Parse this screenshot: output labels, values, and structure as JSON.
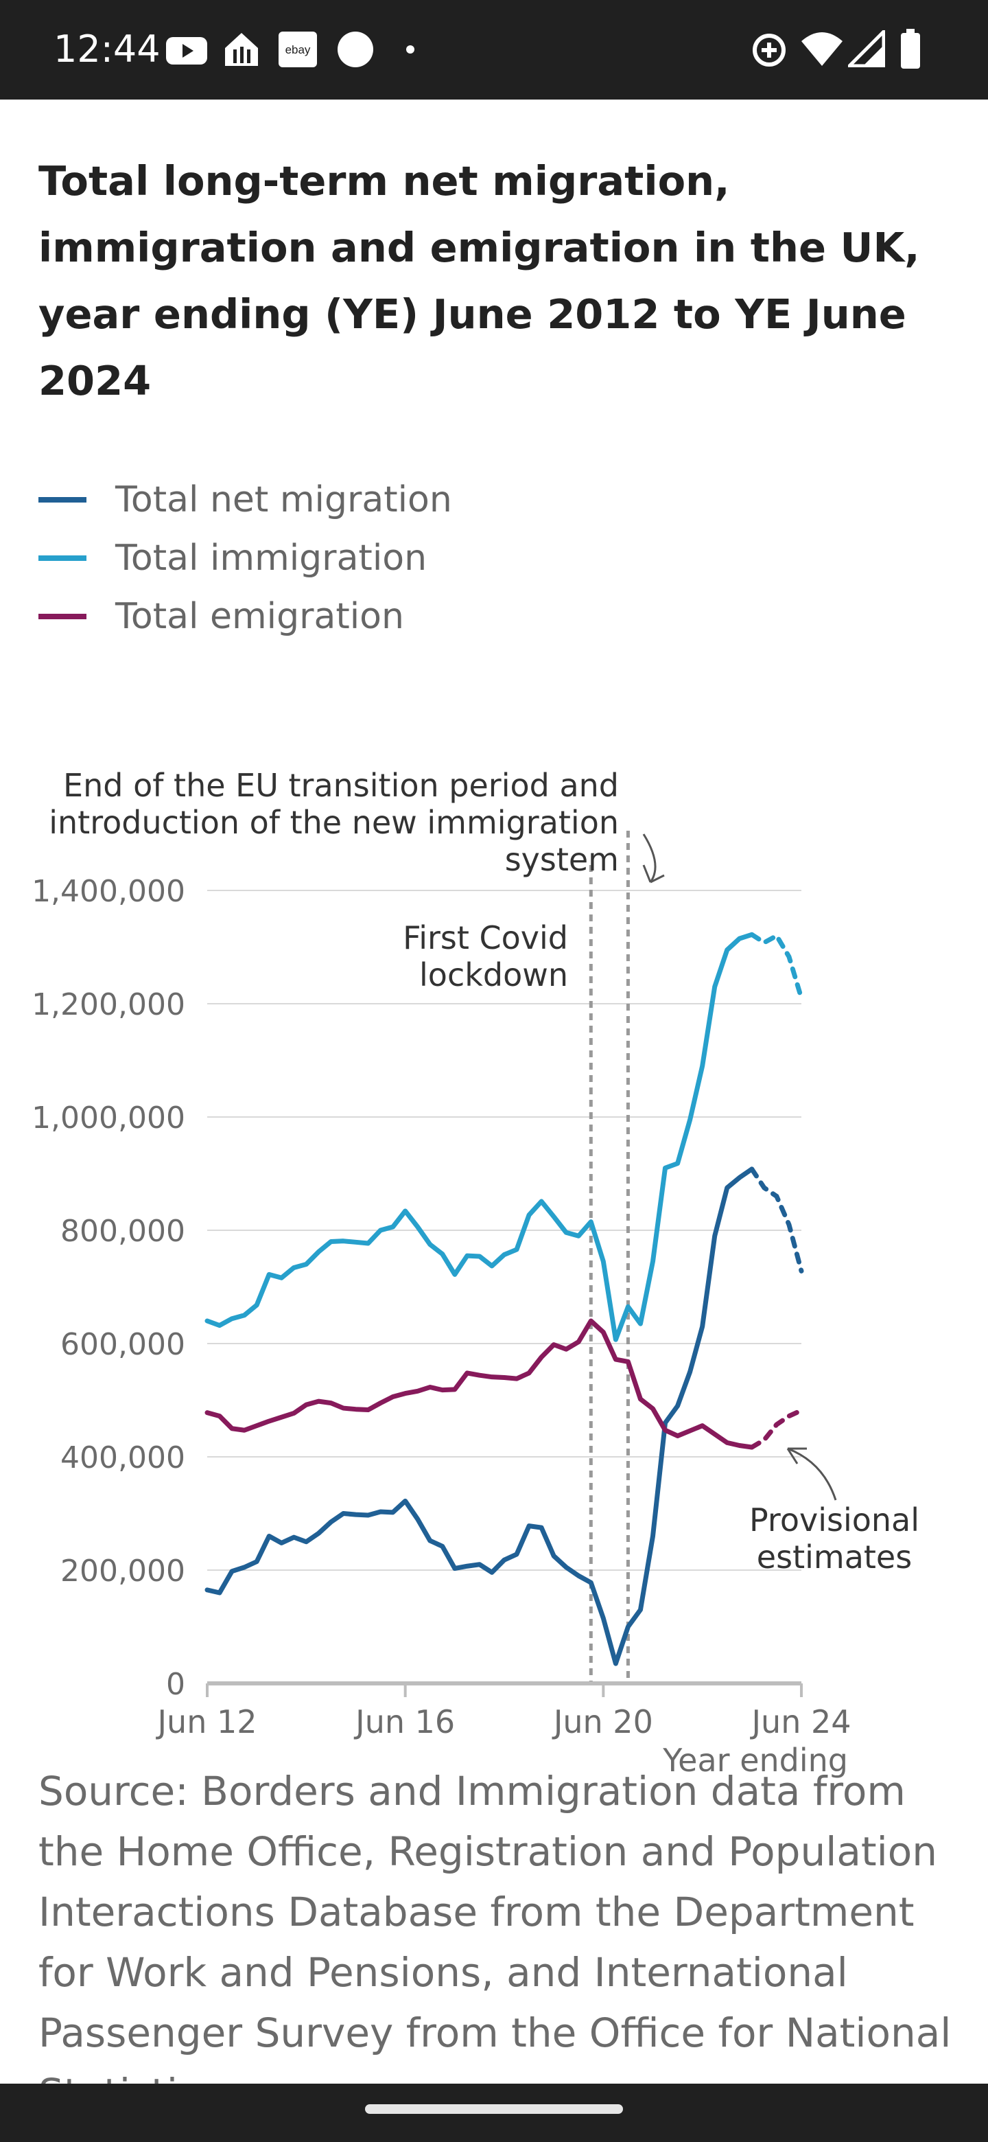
{
  "status_bar": {
    "time": "12:44",
    "icons": [
      "youtube-icon",
      "delivery-icon",
      "ebay-icon",
      "circle-icon",
      "dot-icon",
      "data-saver-icon",
      "wifi-icon",
      "signal-icon",
      "battery-icon"
    ],
    "ebay_label": "ebay"
  },
  "article": {
    "title": "Total long-term net migration, immigration and emigration in the UK, year ending (YE) June 2012 to YE June 2024",
    "source": "Source: Borders and Immigration data from the Home Office, Registration and Population Interactions Database from the Department for Work and Pensions, and International Passenger Survey from the Office for National Statistics"
  },
  "colors": {
    "net": "#206095",
    "immigration": "#27a0cc",
    "emigration": "#871a5b",
    "grid": "#d9d9d9",
    "axis": "#bdbdbd",
    "annotation": "#999999"
  },
  "chart_data": {
    "type": "line",
    "xlabel": "Year ending",
    "ylabel": "",
    "ylim": [
      0,
      1400000
    ],
    "xlim": [
      "Jun 12",
      "Jun 24"
    ],
    "x_ticks": [
      "Jun 12",
      "Jun 16",
      "Jun 20",
      "Jun 24"
    ],
    "y_ticks": [
      "0",
      "200,000",
      "400,000",
      "600,000",
      "800,000",
      "1,000,000",
      "1,200,000",
      "1,400,000"
    ],
    "grid": true,
    "legend_position": "top-left",
    "annotations": [
      {
        "text_lines": [
          "End of the EU transition period and",
          "introduction of the new immigration",
          "system"
        ],
        "x": "Dec 20"
      },
      {
        "text_lines": [
          "First Covid",
          "lockdown"
        ],
        "x": "Mar 20"
      },
      {
        "text_lines": [
          "Provisional",
          "estimates"
        ],
        "x": "Jun 23 to Jun 24"
      }
    ],
    "x": [
      "Jun 12",
      "Sep 12",
      "Dec 12",
      "Mar 13",
      "Jun 13",
      "Sep 13",
      "Dec 13",
      "Mar 14",
      "Jun 14",
      "Sep 14",
      "Dec 14",
      "Mar 15",
      "Jun 15",
      "Sep 15",
      "Dec 15",
      "Mar 16",
      "Jun 16",
      "Sep 16",
      "Dec 16",
      "Mar 17",
      "Jun 17",
      "Sep 17",
      "Dec 17",
      "Mar 18",
      "Jun 18",
      "Sep 18",
      "Dec 18",
      "Mar 19",
      "Jun 19",
      "Sep 19",
      "Dec 19",
      "Mar 20",
      "Jun 20",
      "Sep 20",
      "Dec 20",
      "Mar 21",
      "Jun 21",
      "Sep 21",
      "Dec 21",
      "Mar 22",
      "Jun 22",
      "Sep 22",
      "Dec 22",
      "Mar 23",
      "Jun 23",
      "Sep 23",
      "Dec 23",
      "Mar 24",
      "Jun 24"
    ],
    "provisional_from": "Jun 23",
    "series": [
      {
        "name": "Total net migration",
        "color": "#206095",
        "values": [
          165000,
          160000,
          198000,
          205000,
          215000,
          260000,
          248000,
          258000,
          250000,
          265000,
          285000,
          300000,
          298000,
          297000,
          303000,
          302000,
          322000,
          290000,
          252000,
          242000,
          203000,
          207000,
          210000,
          196000,
          218000,
          228000,
          278000,
          275000,
          225000,
          205000,
          190000,
          178000,
          115000,
          35000,
          100000,
          130000,
          260000,
          460000,
          490000,
          550000,
          630000,
          790000,
          875000,
          893000,
          908000,
          875000,
          860000,
          810000,
          728000
        ]
      },
      {
        "name": "Total immigration",
        "color": "#27a0cc",
        "values": [
          640000,
          632000,
          644000,
          650000,
          668000,
          722000,
          716000,
          734000,
          740000,
          762000,
          780000,
          781000,
          779000,
          777000,
          800000,
          806000,
          834000,
          806000,
          775000,
          758000,
          722000,
          755000,
          754000,
          737000,
          757000,
          766000,
          827000,
          851000,
          824000,
          796000,
          790000,
          815000,
          745000,
          607000,
          665000,
          635000,
          745000,
          910000,
          918000,
          995000,
          1090000,
          1230000,
          1295000,
          1315000,
          1322000,
          1308000,
          1320000,
          1283000,
          1210000
        ]
      },
      {
        "name": "Total emigration",
        "color": "#871a5b",
        "values": [
          478000,
          472000,
          450000,
          447000,
          455000,
          463000,
          470000,
          477000,
          492000,
          498000,
          495000,
          486000,
          484000,
          483000,
          495000,
          506000,
          512000,
          516000,
          523000,
          518000,
          519000,
          548000,
          544000,
          541000,
          540000,
          538000,
          548000,
          576000,
          598000,
          590000,
          603000,
          640000,
          620000,
          572000,
          568000,
          502000,
          485000,
          447000,
          437000,
          446000,
          455000,
          440000,
          425000,
          420000,
          417000,
          430000,
          457000,
          472000,
          482000
        ]
      }
    ]
  }
}
